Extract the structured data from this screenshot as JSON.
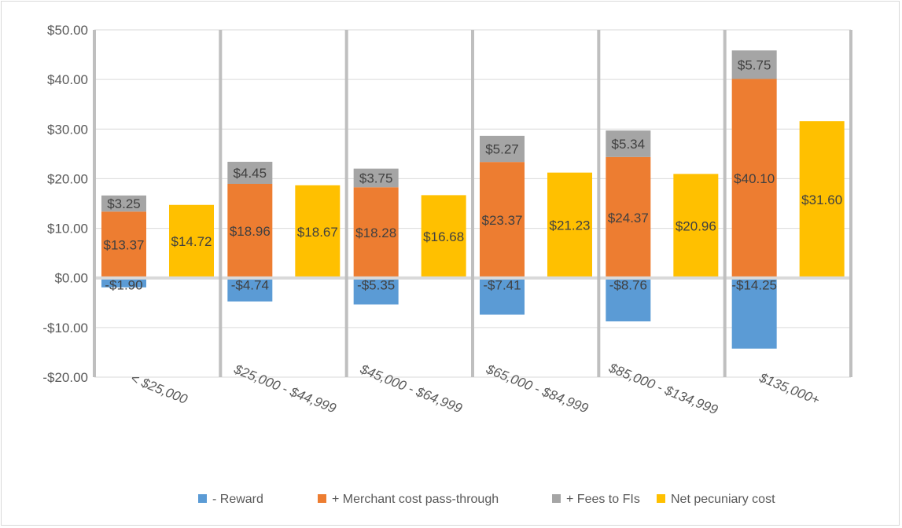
{
  "chart_data": {
    "type": "bar",
    "stacked": true,
    "categories": [
      "< $25,000",
      "$25,000 - $44,999",
      "$45,000 - $64,999",
      "$65,000 - $84,999",
      "$85,000 - $134,999",
      "$135,000+"
    ],
    "series": [
      {
        "name": "- Reward",
        "color": "#5b9bd5",
        "stack": "components",
        "values": [
          -1.9,
          -4.74,
          -5.35,
          -7.41,
          -8.76,
          -14.25
        ],
        "labels": [
          "-$1.90",
          "-$4.74",
          "-$5.35",
          "-$7.41",
          "-$8.76",
          "-$14.25"
        ]
      },
      {
        "name": "+ Merchant cost pass-through",
        "color": "#ed7d31",
        "stack": "components",
        "values": [
          13.37,
          18.96,
          18.28,
          23.37,
          24.37,
          40.1
        ],
        "labels": [
          "$13.37",
          "$18.96",
          "$18.28",
          "$23.37",
          "$24.37",
          "$40.10"
        ]
      },
      {
        "name": "+ Fees to FIs",
        "color": "#a5a5a5",
        "stack": "components",
        "values": [
          3.25,
          4.45,
          3.75,
          5.27,
          5.34,
          5.75
        ],
        "labels": [
          "$3.25",
          "$4.45",
          "$3.75",
          "$5.27",
          "$5.34",
          "$5.75"
        ]
      },
      {
        "name": "Net pecuniary cost",
        "color": "#ffc000",
        "stack": "net",
        "values": [
          14.72,
          18.67,
          16.68,
          21.23,
          20.96,
          31.6
        ],
        "labels": [
          "$14.72",
          "$18.67",
          "$16.68",
          "$21.23",
          "$20.96",
          "$31.60"
        ]
      }
    ],
    "ylim": [
      -20,
      50
    ],
    "yticks": [
      -20,
      -10,
      0,
      10,
      20,
      30,
      40,
      50
    ],
    "ytick_labels": [
      "-$20.00",
      "-$10.00",
      "$0.00",
      "$10.00",
      "$20.00",
      "$30.00",
      "$40.00",
      "$50.00"
    ],
    "grid": true,
    "legend_position": "bottom",
    "title": "",
    "xlabel": "",
    "ylabel": ""
  }
}
